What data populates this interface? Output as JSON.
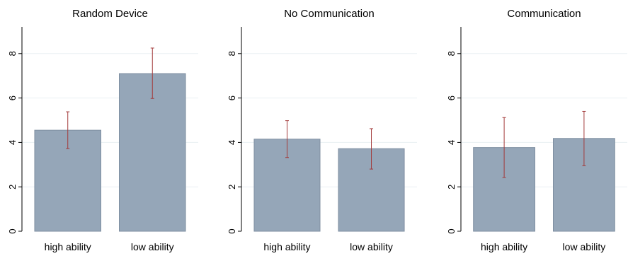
{
  "chart_data": [
    {
      "type": "bar",
      "title": "Random Device",
      "categories": [
        "high ability",
        "low ability"
      ],
      "values": [
        4.55,
        7.1
      ],
      "error_low": [
        3.72,
        5.98
      ],
      "error_high": [
        5.38,
        8.25
      ],
      "ylim": [
        0,
        9.3
      ],
      "yticks": [
        "0",
        "2",
        "4",
        "6",
        "8"
      ],
      "grid": true
    },
    {
      "type": "bar",
      "title": "No Communication",
      "categories": [
        "high ability",
        "low ability"
      ],
      "values": [
        4.15,
        3.72
      ],
      "error_low": [
        3.32,
        2.8
      ],
      "error_high": [
        4.98,
        4.62
      ],
      "ylim": [
        0,
        9.3
      ],
      "yticks": [
        "0",
        "2",
        "4",
        "6",
        "8"
      ],
      "grid": true
    },
    {
      "type": "bar",
      "title": "Communication",
      "categories": [
        "high ability",
        "low ability"
      ],
      "values": [
        3.77,
        4.18
      ],
      "error_low": [
        2.42,
        2.95
      ],
      "error_high": [
        5.12,
        5.4
      ],
      "ylim": [
        0,
        9.3
      ],
      "yticks": [
        "0",
        "2",
        "4",
        "6",
        "8"
      ],
      "grid": true
    }
  ],
  "colors": {
    "bar_fill": "#95a6b8",
    "bar_stroke": "#7f8fa1",
    "error_bar": "#a33a3a",
    "grid": "#eaf0f3",
    "axis": "#000000"
  }
}
